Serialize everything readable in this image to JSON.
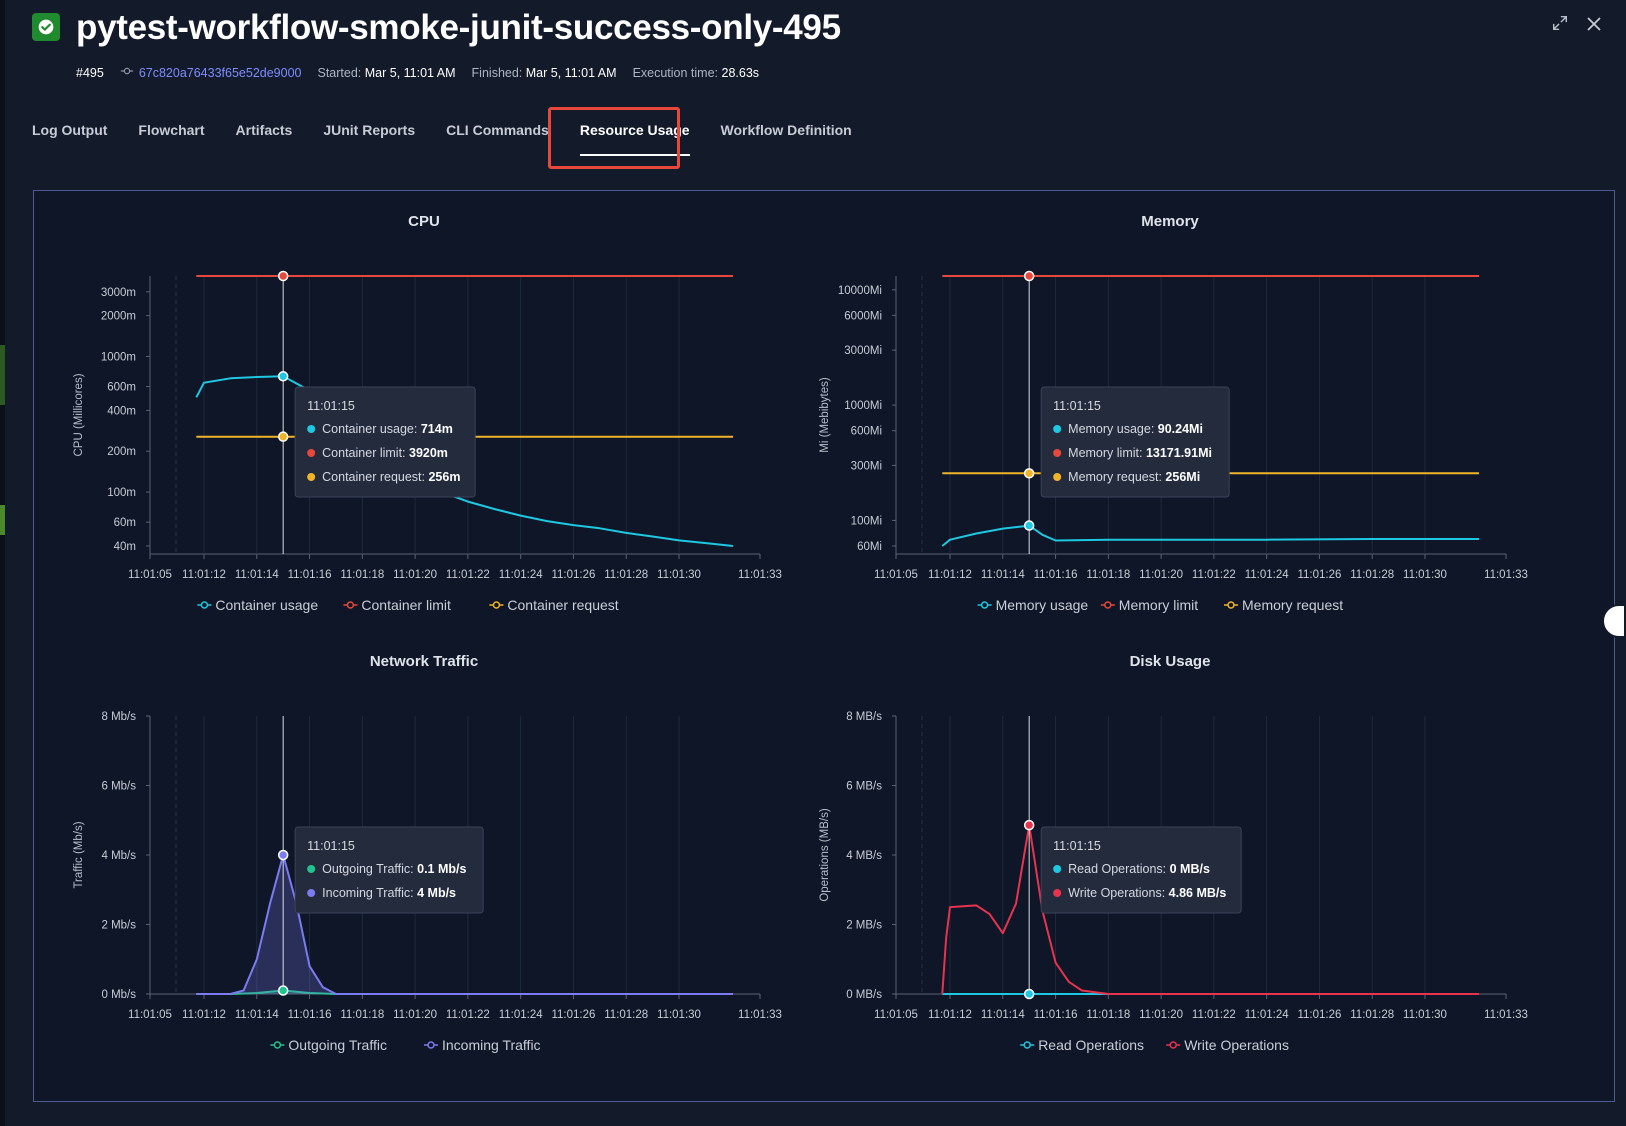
{
  "header": {
    "title": "pytest-workflow-smoke-junit-success-only-495",
    "run_number": "#495",
    "commit": "67c820a76433f65e52de9000",
    "started_label": "Started:",
    "started_value": "Mar 5, 11:01 AM",
    "finished_label": "Finished:",
    "finished_value": "Mar 5, 11:01 AM",
    "execution_label": "Execution time:",
    "execution_value": "28.63s",
    "expand_icon": "expand-icon",
    "close_icon": "close-icon"
  },
  "tabs": [
    {
      "label": "Log Output"
    },
    {
      "label": "Flowchart"
    },
    {
      "label": "Artifacts"
    },
    {
      "label": "JUnit Reports"
    },
    {
      "label": "CLI Commands"
    },
    {
      "label": "Resource Usage",
      "active": true
    },
    {
      "label": "Workflow Definition"
    }
  ],
  "colors": {
    "cyan": "#1ec8e2",
    "red": "#e8473b",
    "yellow": "#f0b429",
    "green": "#22c38e",
    "purple": "#7b7cf0",
    "write_red": "#e8334f"
  },
  "chart_data": [
    {
      "type": "line",
      "title": "CPU",
      "ylabel": "CPU (Millicores)",
      "yscale": "log",
      "yticks": [
        "40m",
        "60m",
        "100m",
        "200m",
        "400m",
        "600m",
        "1000m",
        "2000m",
        "3000m"
      ],
      "xticks": [
        "11:01:05",
        "11:01:12",
        "11:01:14",
        "11:01:16",
        "11:01:18",
        "11:01:20",
        "11:01:22",
        "11:01:24",
        "11:01:26",
        "11:01:28",
        "11:01:30",
        "11:01:33"
      ],
      "series": [
        {
          "name": "Container usage",
          "color": "#1ec8e2",
          "x": [
            "11:01:11",
            "11:01:12",
            "11:01:13",
            "11:01:14",
            "11:01:15",
            "11:01:16",
            "11:01:17",
            "11:01:18",
            "11:01:19",
            "11:01:20",
            "11:01:21",
            "11:01:22",
            "11:01:23",
            "11:01:24",
            "11:01:25",
            "11:01:26",
            "11:01:27",
            "11:01:28",
            "11:01:29",
            "11:01:30",
            "11:01:31",
            "11:01:32"
          ],
          "values": [
            500,
            640,
            690,
            705,
            714,
            560,
            380,
            250,
            165,
            120,
            100,
            85,
            75,
            67,
            61,
            57,
            54,
            50,
            47,
            44,
            42,
            40
          ]
        },
        {
          "name": "Container limit",
          "color": "#e8473b",
          "x": [
            "11:01:11",
            "11:01:32"
          ],
          "values": [
            3920,
            3920
          ]
        },
        {
          "name": "Container request",
          "color": "#f0b429",
          "x": [
            "11:01:11",
            "11:01:32"
          ],
          "values": [
            256,
            256
          ]
        }
      ],
      "tooltip": {
        "time": "11:01:15",
        "rows": [
          {
            "label": "Container usage:",
            "value": "714m",
            "color": "#1ec8e2"
          },
          {
            "label": "Container limit:",
            "value": "3920m",
            "color": "#e8473b"
          },
          {
            "label": "Container request:",
            "value": "256m",
            "color": "#f0b429"
          }
        ]
      }
    },
    {
      "type": "line",
      "title": "Memory",
      "ylabel": "Mi (Mebibytes)",
      "yscale": "log",
      "yticks": [
        "60Mi",
        "100Mi",
        "300Mi",
        "600Mi",
        "1000Mi",
        "3000Mi",
        "6000Mi",
        "10000Mi"
      ],
      "xticks": [
        "11:01:05",
        "11:01:12",
        "11:01:14",
        "11:01:16",
        "11:01:18",
        "11:01:20",
        "11:01:22",
        "11:01:24",
        "11:01:26",
        "11:01:28",
        "11:01:30",
        "11:01:33"
      ],
      "series": [
        {
          "name": "Memory usage",
          "color": "#1ec8e2",
          "x": [
            "11:01:11",
            "11:01:12",
            "11:01:13",
            "11:01:14",
            "11:01:15",
            "11:01:15.5",
            "11:01:16",
            "11:01:18",
            "11:01:20",
            "11:01:24",
            "11:01:28",
            "11:01:32"
          ],
          "values": [
            60,
            68,
            77,
            85,
            90.24,
            75,
            67,
            68,
            68,
            68,
            69,
            69
          ]
        },
        {
          "name": "Memory limit",
          "color": "#e8473b",
          "x": [
            "11:01:11",
            "11:01:32"
          ],
          "values": [
            13171.91,
            13171.91
          ]
        },
        {
          "name": "Memory request",
          "color": "#f0b429",
          "x": [
            "11:01:11",
            "11:01:32"
          ],
          "values": [
            256,
            256
          ]
        }
      ],
      "tooltip": {
        "time": "11:01:15",
        "rows": [
          {
            "label": "Memory usage:",
            "value": "90.24Mi",
            "color": "#1ec8e2"
          },
          {
            "label": "Memory limit:",
            "value": "13171.91Mi",
            "color": "#e8473b"
          },
          {
            "label": "Memory request:",
            "value": "256Mi",
            "color": "#f0b429"
          }
        ]
      }
    },
    {
      "type": "area",
      "title": "Network Traffic",
      "ylabel": "Traffic (Mb/s)",
      "yticks": [
        "0 Mb/s",
        "2 Mb/s",
        "4 Mb/s",
        "6 Mb/s",
        "8 Mb/s"
      ],
      "ylim": [
        0,
        8
      ],
      "xticks": [
        "11:01:05",
        "11:01:12",
        "11:01:14",
        "11:01:16",
        "11:01:18",
        "11:01:20",
        "11:01:22",
        "11:01:24",
        "11:01:26",
        "11:01:28",
        "11:01:30",
        "11:01:33"
      ],
      "series": [
        {
          "name": "Outgoing Traffic",
          "color": "#22c38e",
          "x": [
            "11:01:11",
            "11:01:13",
            "11:01:14",
            "11:01:15",
            "11:01:16",
            "11:01:17",
            "11:01:32"
          ],
          "values": [
            0,
            0,
            0.03,
            0.1,
            0.03,
            0,
            0
          ]
        },
        {
          "name": "Incoming Traffic",
          "color": "#7b7cf0",
          "x": [
            "11:01:11",
            "11:01:13",
            "11:01:13.5",
            "11:01:14",
            "11:01:14.5",
            "11:01:15",
            "11:01:15.5",
            "11:01:16",
            "11:01:16.5",
            "11:01:17",
            "11:01:32"
          ],
          "values": [
            0,
            0,
            0.1,
            1.0,
            2.6,
            4,
            2.6,
            0.8,
            0.2,
            0,
            0
          ]
        }
      ],
      "tooltip": {
        "time": "11:01:15",
        "rows": [
          {
            "label": "Outgoing Traffic:",
            "value": "0.1 Mb/s",
            "color": "#22c38e"
          },
          {
            "label": "Incoming Traffic:",
            "value": "4 Mb/s",
            "color": "#7b7cf0"
          }
        ]
      }
    },
    {
      "type": "line",
      "title": "Disk Usage",
      "ylabel": "Operations (MB/s)",
      "yticks": [
        "0 MB/s",
        "2 MB/s",
        "4 MB/s",
        "6 MB/s",
        "8 MB/s"
      ],
      "ylim": [
        0,
        8
      ],
      "xticks": [
        "11:01:05",
        "11:01:12",
        "11:01:14",
        "11:01:16",
        "11:01:18",
        "11:01:20",
        "11:01:22",
        "11:01:24",
        "11:01:26",
        "11:01:28",
        "11:01:30",
        "11:01:33"
      ],
      "series": [
        {
          "name": "Read Operations",
          "color": "#1ec8e2",
          "x": [
            "11:01:11",
            "11:01:32"
          ],
          "values": [
            0,
            0
          ]
        },
        {
          "name": "Write Operations",
          "color": "#e8334f",
          "x": [
            "11:01:11",
            "11:01:11.5",
            "11:01:12",
            "11:01:13",
            "11:01:13.5",
            "11:01:14",
            "11:01:14.5",
            "11:01:15",
            "11:01:15.5",
            "11:01:16",
            "11:01:16.5",
            "11:01:17",
            "11:01:18",
            "11:01:32"
          ],
          "values": [
            0,
            1.6,
            2.5,
            2.55,
            2.3,
            1.75,
            2.6,
            4.86,
            2.4,
            0.9,
            0.35,
            0.1,
            0,
            0
          ]
        }
      ],
      "tooltip": {
        "time": "11:01:15",
        "rows": [
          {
            "label": "Read Operations:",
            "value": "0 MB/s",
            "color": "#1ec8e2"
          },
          {
            "label": "Write Operations:",
            "value": "4.86 MB/s",
            "color": "#e8334f"
          }
        ]
      }
    }
  ]
}
